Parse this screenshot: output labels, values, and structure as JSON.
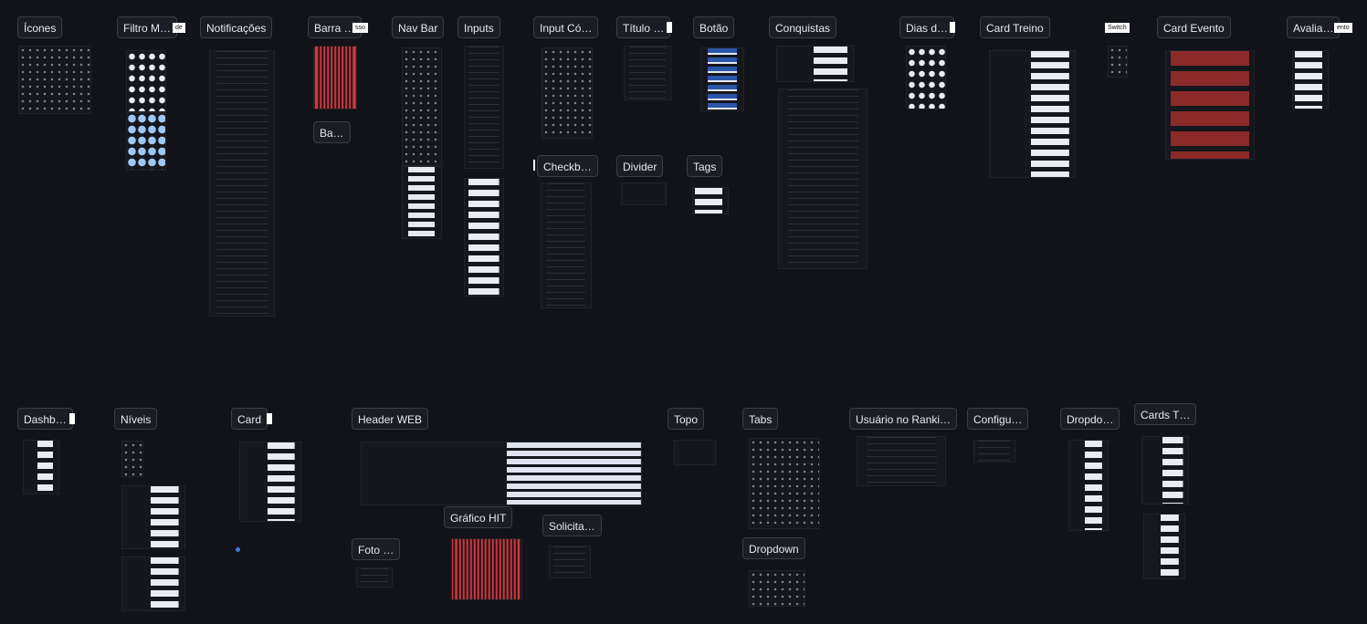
{
  "labels": [
    "Ícones",
    "Filtro M…",
    "Notificações",
    "Barra …",
    "Nav Bar",
    "Inputs",
    "Input Có…",
    "Título …",
    "Botão",
    "Conquistas",
    "Dias d…",
    "Card Treino",
    "Card Evento",
    "Avalia…",
    "Ba…",
    "Checkb…",
    "Divider",
    "Tags",
    "Dashb…",
    "Níveis",
    "Card",
    "Header WEB",
    "Topo",
    "Tabs",
    "Usuário no Ranki…",
    "Configu…",
    "Dropdo…",
    "Cards T…",
    "Gráfico HIT",
    "Solicita…",
    "Foto …",
    "Dropdown"
  ],
  "tags": [
    "de",
    "sso",
    "Switch",
    "ento"
  ]
}
